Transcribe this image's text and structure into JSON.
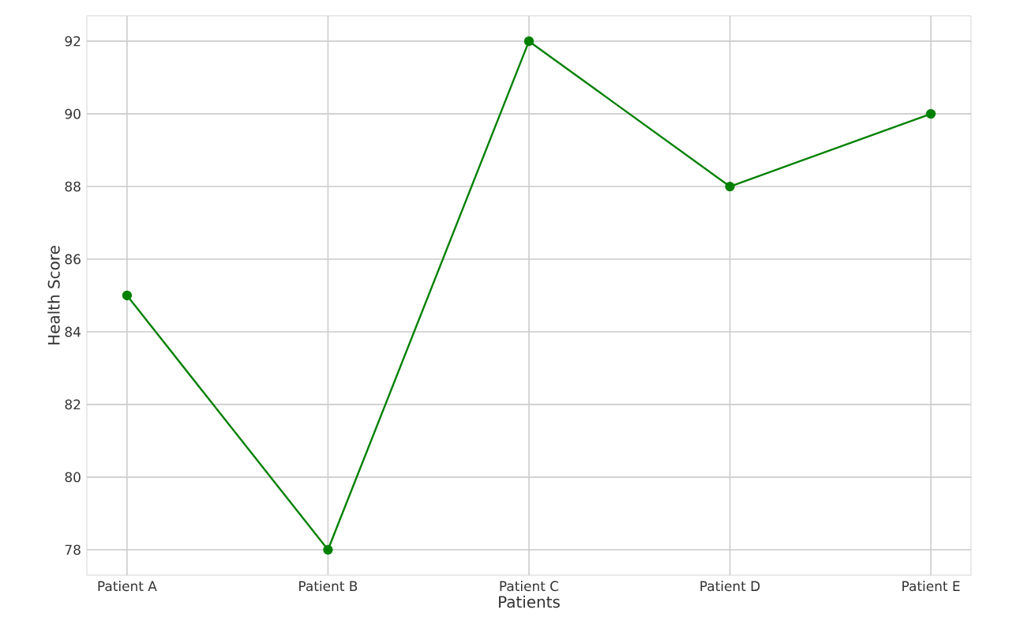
{
  "chart_data": {
    "type": "line",
    "xlabel": "Patients",
    "ylabel": "Health Score",
    "categories": [
      "Patient A",
      "Patient B",
      "Patient C",
      "Patient D",
      "Patient E"
    ],
    "series": [
      {
        "color": "#008000",
        "values": [
          85,
          78,
          92,
          88,
          90
        ]
      }
    ],
    "ylim": [
      77.3,
      92.7
    ],
    "yticks": [
      78,
      80,
      82,
      84,
      86,
      88,
      90,
      92
    ],
    "grid": true,
    "marker": "circle",
    "line_style": "solid"
  }
}
